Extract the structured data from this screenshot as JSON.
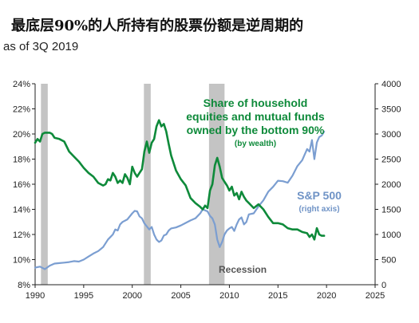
{
  "title": "最底层90%的人所持有的股票份额是逆周期的",
  "subtitle": "as of 3Q 2019",
  "colors": {
    "share_line": "#0e8a3a",
    "sp500_line": "#7b9ed1",
    "recession_band": "#c4c4c4",
    "axis": "#222222"
  },
  "chart_data": {
    "type": "line",
    "x_axis": {
      "min": 1990,
      "max": 2025,
      "ticks": [
        "1990",
        "1995",
        "2000",
        "2005",
        "2010",
        "2015",
        "2020",
        "2025"
      ]
    },
    "y_left": {
      "min": 8,
      "max": 24,
      "ticks": [
        "8%",
        "10%",
        "12%",
        "14%",
        "16%",
        "18%",
        "20%",
        "22%",
        "24%"
      ],
      "unit": "%"
    },
    "y_right": {
      "min": 0,
      "max": 4000,
      "ticks": [
        "0",
        "500",
        "1000",
        "1500",
        "2000",
        "2500",
        "3000",
        "3500",
        "4000"
      ]
    },
    "recessions": [
      [
        1990.6,
        1991.3
      ],
      [
        2001.2,
        2001.9
      ],
      [
        2007.9,
        2009.5
      ]
    ],
    "annotations": {
      "share_line1": "Share of household",
      "share_line2": "equities and mutual funds",
      "share_line3": "owned by the bottom 90%",
      "share_line4": "(by wealth)",
      "sp_line1": "S&P 500",
      "sp_line2": "(right axis)",
      "recession": "Recession"
    },
    "series": [
      {
        "axis": "left",
        "x": [
          1990.0,
          1990.25,
          1990.5,
          1990.75,
          1991.0,
          1991.25,
          1991.5,
          1991.75,
          1992.0,
          1992.5,
          1993.0,
          1993.5,
          1994.0,
          1994.5,
          1995.0,
          1995.5,
          1996.0,
          1996.5,
          1997.0,
          1997.25,
          1997.5,
          1997.75,
          1998.0,
          1998.25,
          1998.5,
          1998.75,
          1999.0,
          1999.25,
          1999.5,
          1999.75,
          2000.0,
          2000.25,
          2000.5,
          2000.75,
          2001.0,
          2001.25,
          2001.5,
          2001.75,
          2002.0,
          2002.25,
          2002.5,
          2002.75,
          2003.0,
          2003.25,
          2003.5,
          2003.75,
          2004.0,
          2004.5,
          2005.0,
          2005.5,
          2006.0,
          2006.5,
          2007.0,
          2007.25,
          2007.5,
          2007.75,
          2008.0,
          2008.25,
          2008.5,
          2008.75,
          2009.0,
          2009.25,
          2009.5,
          2009.75,
          2010.0,
          2010.25,
          2010.5,
          2010.75,
          2011.0,
          2011.25,
          2011.5,
          2011.75,
          2012.0,
          2012.5,
          2013.0,
          2013.5,
          2014.0,
          2014.5,
          2015.0,
          2015.5,
          2016.0,
          2016.5,
          2017.0,
          2017.5,
          2018.0,
          2018.25,
          2018.5,
          2018.75,
          2019.0,
          2019.25,
          2019.5,
          2019.75
        ],
        "values": [
          19.3,
          19.6,
          19.4,
          20.0,
          20.1,
          20.1,
          20.1,
          20.0,
          19.7,
          19.6,
          19.4,
          18.6,
          18.2,
          17.8,
          17.3,
          16.9,
          16.6,
          16.1,
          15.9,
          16.0,
          16.4,
          16.3,
          16.9,
          16.6,
          16.1,
          16.3,
          16.1,
          16.8,
          16.5,
          16.0,
          17.4,
          16.9,
          16.6,
          16.9,
          17.2,
          18.6,
          19.4,
          18.5,
          19.3,
          19.6,
          20.6,
          21.1,
          20.6,
          20.8,
          20.2,
          19.2,
          18.3,
          17.1,
          16.4,
          15.9,
          14.9,
          14.5,
          14.2,
          14.0,
          14.3,
          14.1,
          15.5,
          16.0,
          17.5,
          18.1,
          17.4,
          16.5,
          16.2,
          15.9,
          15.5,
          15.8,
          15.1,
          15.3,
          14.8,
          15.4,
          15.0,
          14.7,
          14.5,
          14.1,
          14.4,
          14.0,
          13.4,
          12.9,
          12.9,
          12.8,
          12.5,
          12.4,
          12.4,
          12.2,
          12.1,
          11.8,
          12.0,
          11.6,
          12.5,
          12.0,
          11.9,
          11.9
        ]
      },
      {
        "axis": "right",
        "x": [
          1990.0,
          1990.5,
          1991.0,
          1991.5,
          1992.0,
          1992.5,
          1993.0,
          1993.5,
          1994.0,
          1994.5,
          1995.0,
          1995.5,
          1996.0,
          1996.5,
          1997.0,
          1997.5,
          1998.0,
          1998.25,
          1998.5,
          1998.75,
          1999.0,
          1999.5,
          2000.0,
          2000.25,
          2000.5,
          2000.75,
          2001.0,
          2001.25,
          2001.5,
          2001.75,
          2002.0,
          2002.25,
          2002.5,
          2002.75,
          2003.0,
          2003.25,
          2003.5,
          2003.75,
          2004.0,
          2004.5,
          2005.0,
          2005.5,
          2006.0,
          2006.5,
          2007.0,
          2007.25,
          2007.5,
          2007.75,
          2008.0,
          2008.25,
          2008.5,
          2008.75,
          2009.0,
          2009.25,
          2009.5,
          2009.75,
          2010.0,
          2010.25,
          2010.5,
          2010.75,
          2011.0,
          2011.25,
          2011.5,
          2011.75,
          2012.0,
          2012.5,
          2013.0,
          2013.5,
          2014.0,
          2014.5,
          2015.0,
          2015.5,
          2016.0,
          2016.5,
          2017.0,
          2017.5,
          2018.0,
          2018.25,
          2018.5,
          2018.75,
          2019.0,
          2019.25,
          2019.5,
          2019.75
        ],
        "values": [
          340,
          360,
          310,
          380,
          420,
          430,
          440,
          450,
          470,
          460,
          500,
          560,
          620,
          670,
          750,
          900,
          1000,
          1100,
          1080,
          1200,
          1250,
          1300,
          1420,
          1470,
          1460,
          1360,
          1320,
          1220,
          1160,
          1100,
          1150,
          1000,
          900,
          850,
          880,
          980,
          1000,
          1080,
          1120,
          1140,
          1180,
          1230,
          1280,
          1320,
          1420,
          1500,
          1480,
          1460,
          1370,
          1320,
          1200,
          900,
          750,
          850,
          1000,
          1080,
          1120,
          1150,
          1070,
          1200,
          1300,
          1340,
          1200,
          1250,
          1400,
          1420,
          1560,
          1680,
          1850,
          1950,
          2070,
          2060,
          2030,
          2170,
          2360,
          2480,
          2700,
          2650,
          2880,
          2500,
          2830,
          2940,
          2970,
          3050
        ]
      }
    ]
  }
}
